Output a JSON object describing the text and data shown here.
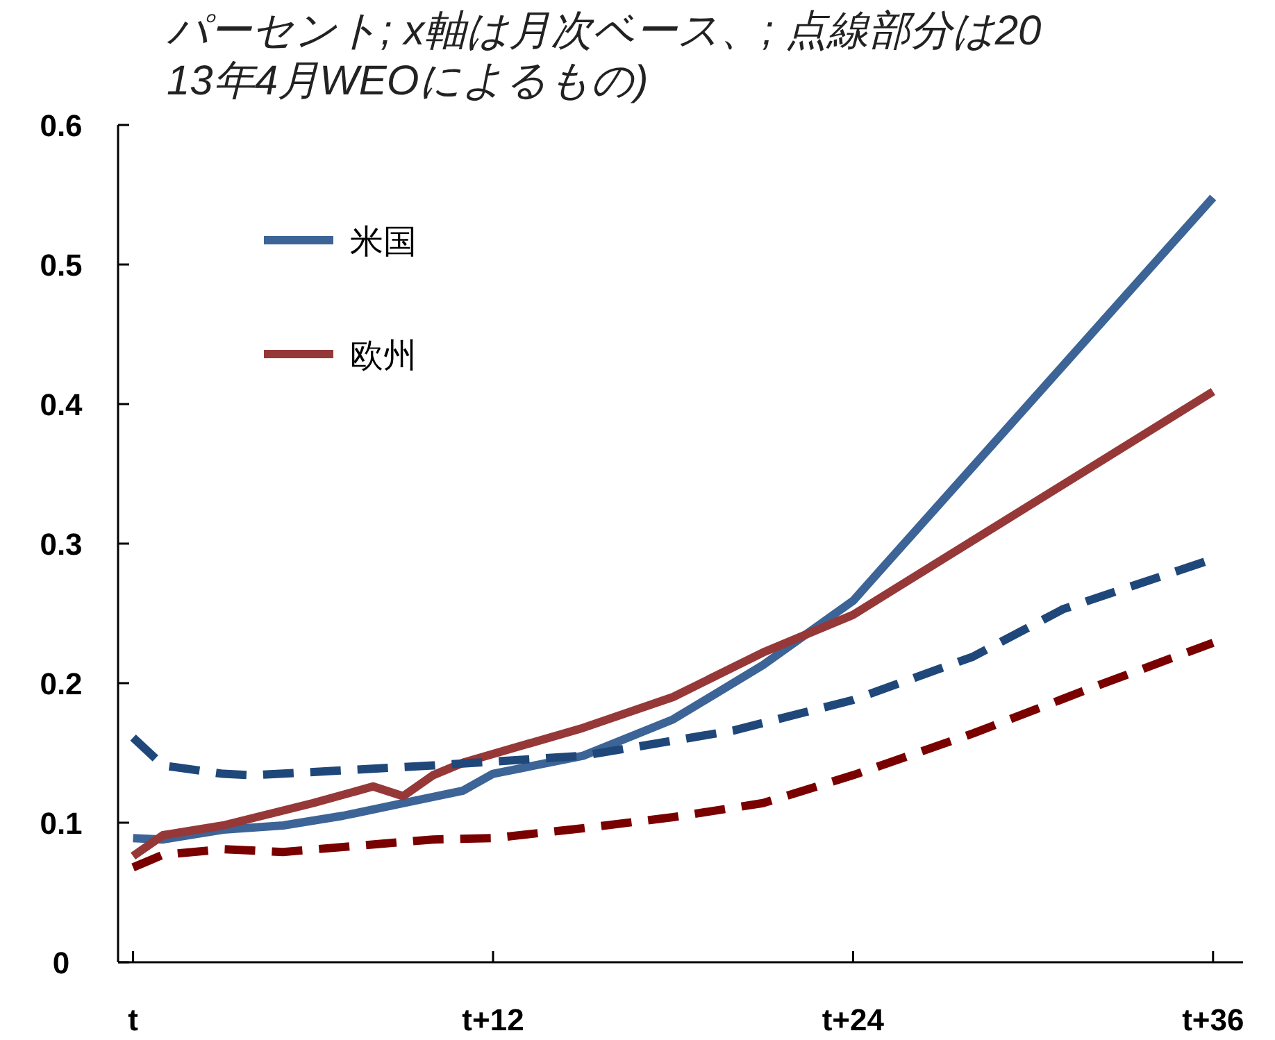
{
  "chart_data": {
    "type": "line",
    "title": "パーセント; x軸は月次ベース、; 点線部分は2013年4月WEOによるもの)",
    "categories": [
      "t",
      null,
      null,
      null,
      null,
      null,
      null,
      null,
      null,
      null,
      null,
      null,
      "t+12",
      null,
      null,
      null,
      null,
      null,
      null,
      null,
      null,
      null,
      null,
      null,
      "t+24",
      null,
      null,
      null,
      null,
      null,
      null,
      null,
      null,
      null,
      null,
      null,
      "t+36"
    ],
    "ylim": [
      0,
      0.6
    ],
    "yticks": [
      0,
      0.1,
      0.2,
      0.3,
      0.4,
      0.5,
      0.6
    ],
    "grid": false,
    "legend": "top left",
    "series": [
      {
        "name": "米国",
        "color": "#3c6496",
        "line_style": "solid",
        "values": [
          0.089,
          0.088,
          null,
          0.095,
          null,
          0.098,
          null,
          0.105,
          null,
          0.114,
          null,
          0.123,
          0.135,
          null,
          null,
          0.148,
          null,
          null,
          0.174,
          null,
          null,
          0.213,
          null,
          null,
          0.259,
          null,
          null,
          null,
          null,
          null,
          null,
          null,
          null,
          null,
          null,
          null,
          0.548
        ]
      },
      {
        "name": "欧州",
        "color": "#963838",
        "line_style": "solid",
        "values": [
          0.076,
          0.091,
          null,
          0.098,
          null,
          null,
          0.114,
          null,
          0.126,
          0.119,
          0.134,
          0.143,
          null,
          null,
          null,
          0.168,
          null,
          null,
          0.19,
          null,
          null,
          0.222,
          null,
          null,
          0.249,
          null,
          null,
          null,
          null,
          null,
          null,
          null,
          null,
          null,
          null,
          null,
          0.409
        ]
      },
      {
        "color": "#1f477a",
        "line_style": "dashed",
        "values": [
          0.161,
          0.141,
          null,
          0.135,
          0.134,
          null,
          null,
          null,
          null,
          null,
          0.141,
          null,
          null,
          null,
          null,
          0.148,
          null,
          null,
          null,
          null,
          0.166,
          null,
          null,
          null,
          0.188,
          null,
          null,
          null,
          0.219,
          null,
          null,
          0.253,
          null,
          null,
          null,
          null,
          0.289
        ]
      },
      {
        "color": "#7a0000",
        "line_style": "dashed",
        "values": [
          0.068,
          0.077,
          null,
          0.081,
          null,
          0.079,
          null,
          null,
          null,
          null,
          0.088,
          null,
          0.089,
          null,
          null,
          0.096,
          null,
          null,
          0.104,
          null,
          null,
          0.114,
          null,
          null,
          0.134,
          null,
          null,
          null,
          0.164,
          null,
          null,
          null,
          0.197,
          null,
          null,
          null,
          0.229
        ]
      }
    ]
  }
}
